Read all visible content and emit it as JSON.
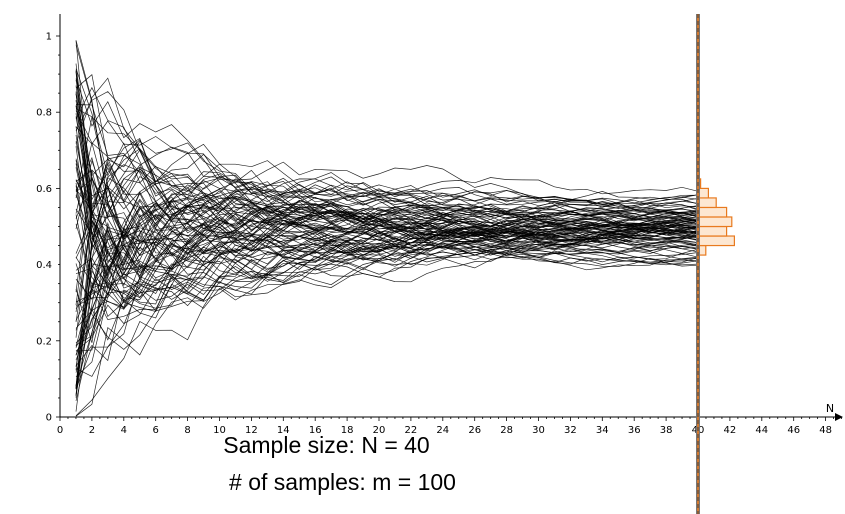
{
  "captions": {
    "sample_size": "Sample size: N = 40",
    "num_samples": "# of samples: m = 100"
  },
  "chart_data": {
    "type": "line",
    "title": "",
    "xlabel": "N",
    "ylabel": "",
    "xlim": [
      0,
      49
    ],
    "ylim": [
      0,
      1.05
    ],
    "x_ticks": [
      0,
      2,
      4,
      6,
      8,
      10,
      12,
      14,
      16,
      18,
      20,
      22,
      24,
      26,
      28,
      30,
      32,
      34,
      36,
      38,
      40,
      42,
      44,
      46,
      48
    ],
    "y_ticks": [
      0,
      0.2,
      0.4,
      0.6,
      0.8,
      1
    ],
    "grid": false,
    "sample_size": 40,
    "num_samples": 100,
    "marker_x": 40,
    "series_color": "#000000",
    "marker_color": "#e87a1f",
    "histogram": {
      "orientation": "horizontal",
      "at_x": 40,
      "bins": [
        {
          "from": 0.425,
          "to": 0.45,
          "count": 3
        },
        {
          "from": 0.45,
          "to": 0.475,
          "count": 14
        },
        {
          "from": 0.475,
          "to": 0.5,
          "count": 11
        },
        {
          "from": 0.5,
          "to": 0.525,
          "count": 13
        },
        {
          "from": 0.525,
          "to": 0.55,
          "count": 11
        },
        {
          "from": 0.55,
          "to": 0.575,
          "count": 7
        },
        {
          "from": 0.575,
          "to": 0.6,
          "count": 4
        },
        {
          "from": 0.6,
          "to": 0.625,
          "count": 1
        }
      ]
    },
    "series_note_seed": 20240611
  }
}
